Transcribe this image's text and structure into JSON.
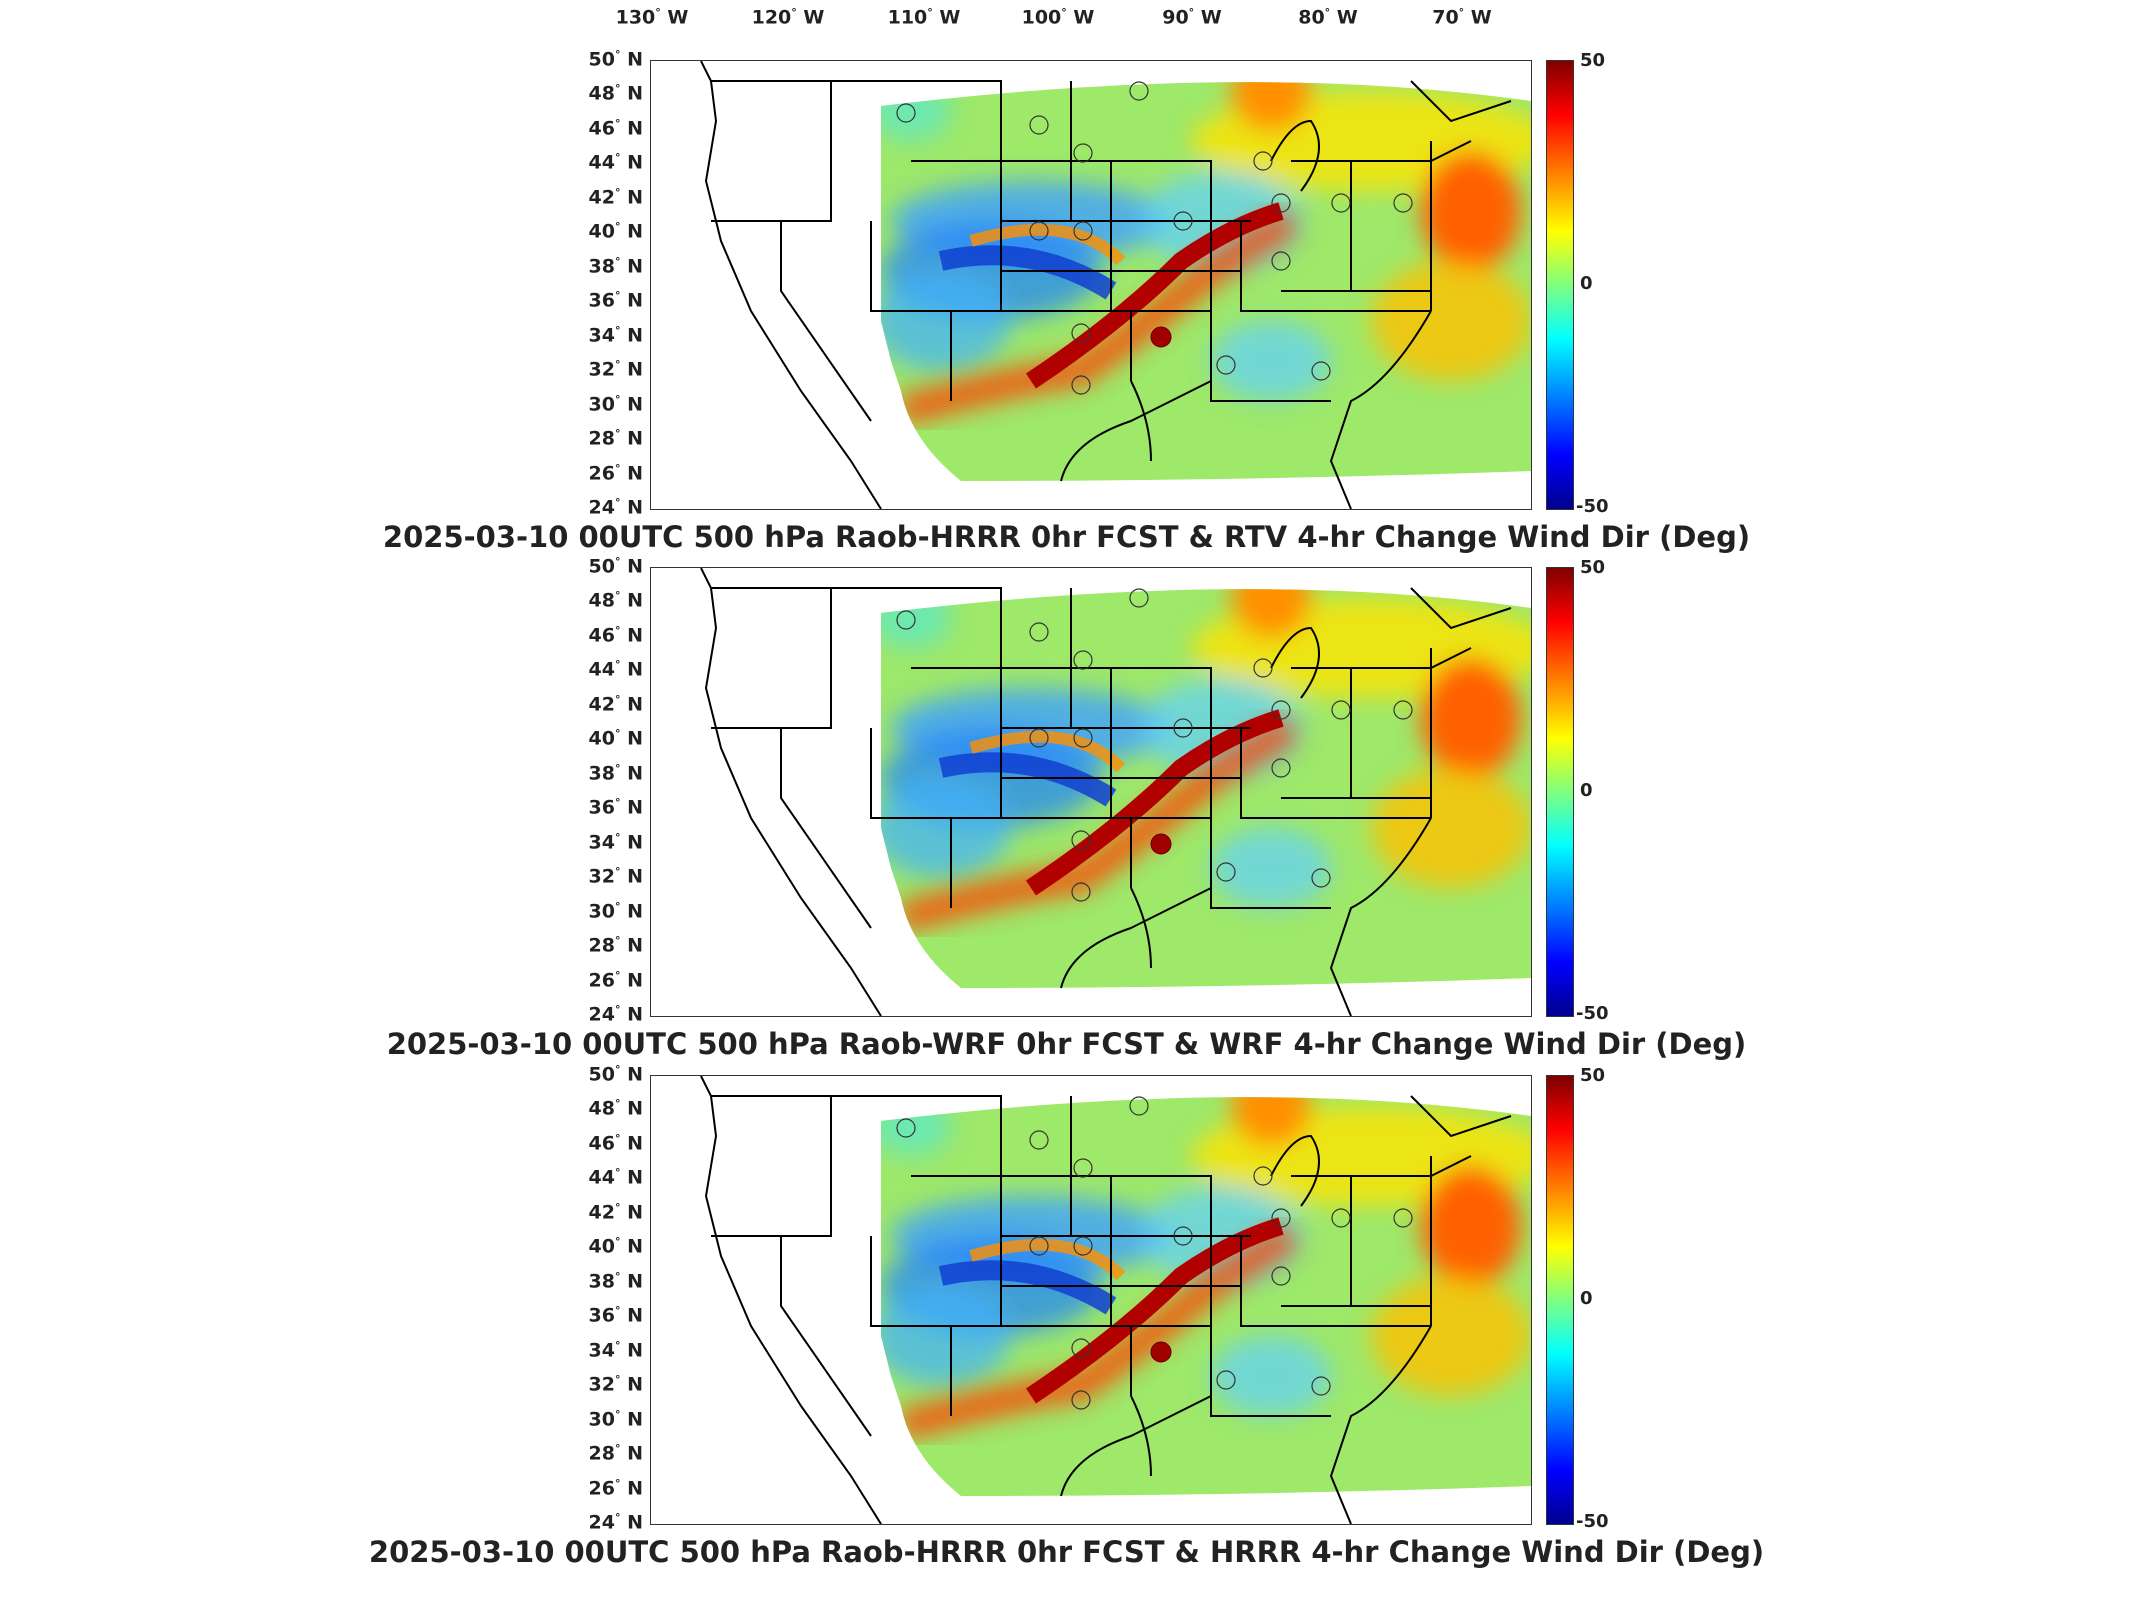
{
  "lon_labels": [
    {
      "deg": "130",
      "dir": "W"
    },
    {
      "deg": "120",
      "dir": "W"
    },
    {
      "deg": "110",
      "dir": "W"
    },
    {
      "deg": "100",
      "dir": "W"
    },
    {
      "deg": "90",
      "dir": "W"
    },
    {
      "deg": "80",
      "dir": "W"
    },
    {
      "deg": "70",
      "dir": "W"
    }
  ],
  "lat_labels": [
    {
      "deg": "50",
      "dir": "N"
    },
    {
      "deg": "48",
      "dir": "N"
    },
    {
      "deg": "46",
      "dir": "N"
    },
    {
      "deg": "44",
      "dir": "N"
    },
    {
      "deg": "42",
      "dir": "N"
    },
    {
      "deg": "40",
      "dir": "N"
    },
    {
      "deg": "38",
      "dir": "N"
    },
    {
      "deg": "36",
      "dir": "N"
    },
    {
      "deg": "34",
      "dir": "N"
    },
    {
      "deg": "32",
      "dir": "N"
    },
    {
      "deg": "30",
      "dir": "N"
    },
    {
      "deg": "28",
      "dir": "N"
    },
    {
      "deg": "26",
      "dir": "N"
    },
    {
      "deg": "24",
      "dir": "N"
    }
  ],
  "colorbar": {
    "max": "50",
    "mid": "0",
    "min": "-50",
    "colors": [
      "#800000",
      "#ff0000",
      "#ff8000",
      "#ffff00",
      "#80ff80",
      "#00ffff",
      "#0080ff",
      "#0000ff",
      "#00008f"
    ]
  },
  "panels": [
    {
      "title": "2025-03-10 00UTC 500 hPa Raob-HRRR 0hr FCST & RTV 4-hr Change Wind Dir (Deg)"
    },
    {
      "title": "2025-03-10 00UTC 500 hPa Raob-WRF 0hr FCST & WRF 4-hr Change Wind Dir (Deg)"
    },
    {
      "title": "2025-03-10 00UTC 500 hPa Raob-HRRR 0hr FCST & HRRR 4-hr Change Wind Dir (Deg)"
    }
  ],
  "colors": {
    "field_base": "#9ee86a",
    "band_warm": "#c01010",
    "band_cold": "#1040d0",
    "border": "#000000"
  }
}
